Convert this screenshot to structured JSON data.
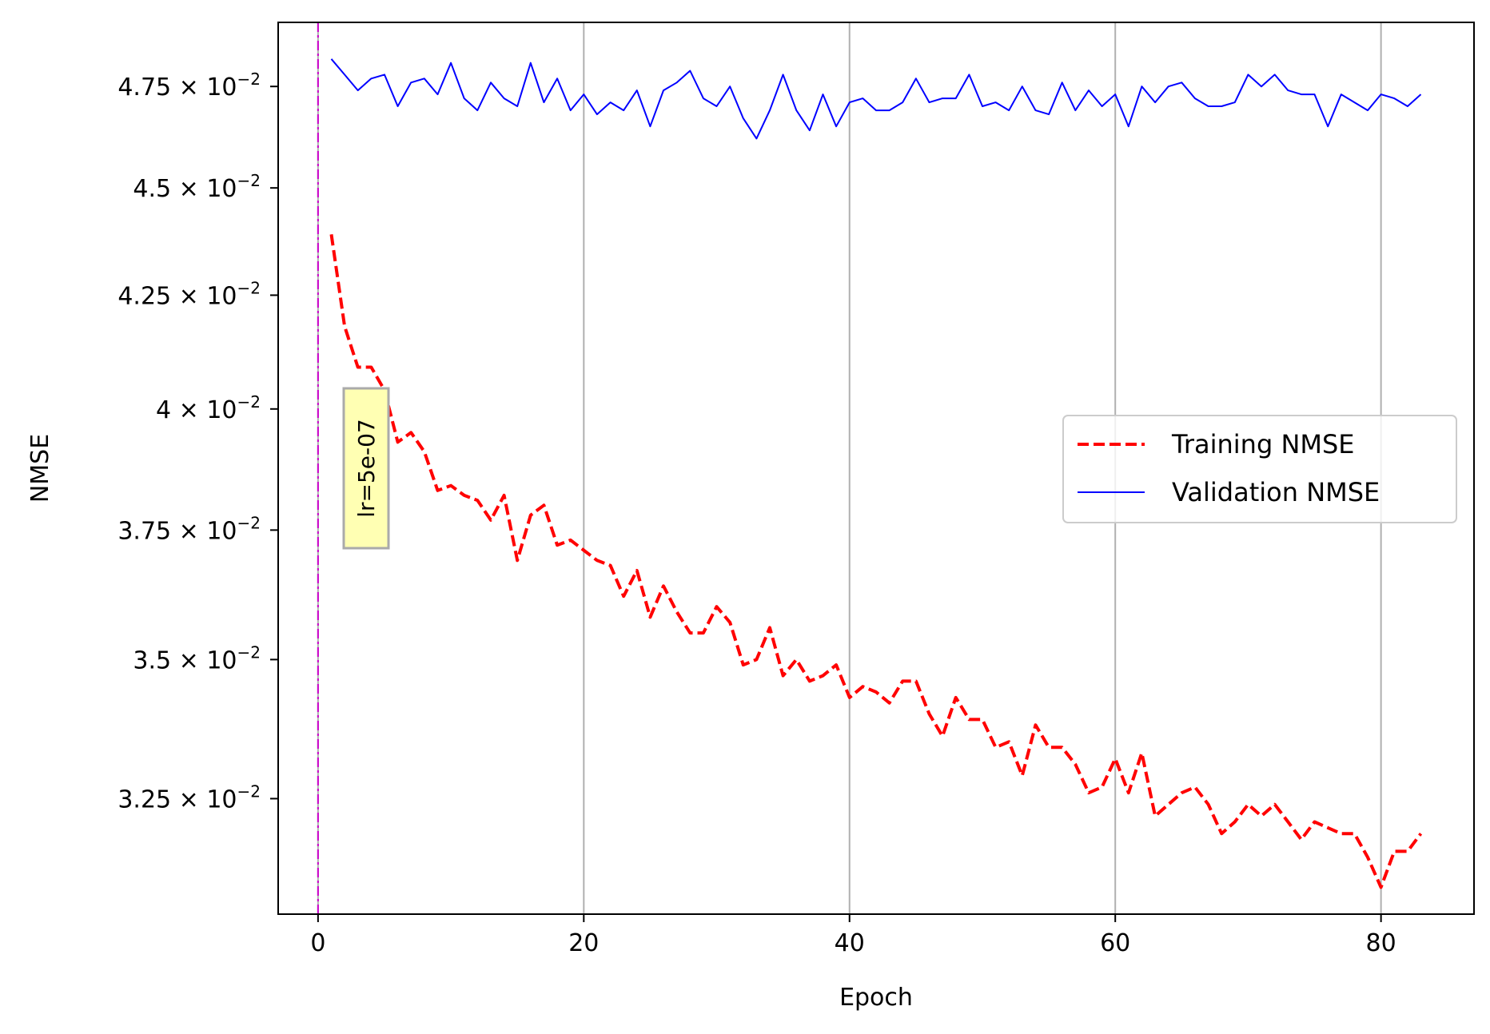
{
  "chart_data": {
    "type": "line",
    "xlabel": "Epoch",
    "ylabel": "NMSE",
    "xlim": [
      -3,
      87
    ],
    "ylim": [
      0.03056,
      0.04915
    ],
    "yscale": "log",
    "grid": "x",
    "x_ticks": [
      {
        "value": 0,
        "label": "0"
      },
      {
        "value": 20,
        "label": "20"
      },
      {
        "value": 40,
        "label": "40"
      },
      {
        "value": 60,
        "label": "60"
      },
      {
        "value": 80,
        "label": "80"
      }
    ],
    "y_ticks": [
      {
        "value": 0.0325,
        "mantissa": "3.25",
        "times": "×",
        "base": "10",
        "exp": "−2"
      },
      {
        "value": 0.035,
        "mantissa": "3.5",
        "times": "×",
        "base": "10",
        "exp": "−2"
      },
      {
        "value": 0.0375,
        "mantissa": "3.75",
        "times": "×",
        "base": "10",
        "exp": "−2"
      },
      {
        "value": 0.04,
        "mantissa": "4",
        "times": "×",
        "base": "10",
        "exp": "−2"
      },
      {
        "value": 0.0425,
        "mantissa": "4.25",
        "times": "×",
        "base": "10",
        "exp": "−2"
      },
      {
        "value": 0.045,
        "mantissa": "4.5",
        "times": "×",
        "base": "10",
        "exp": "−2"
      },
      {
        "value": 0.0475,
        "mantissa": "4.75",
        "times": "×",
        "base": "10",
        "exp": "−2"
      }
    ],
    "legend_position": "center-right",
    "series": [
      {
        "name": "Training NMSE",
        "color": "#ff0000",
        "style": "dashed",
        "x": [
          1,
          2,
          3,
          4,
          5,
          6,
          7,
          8,
          9,
          10,
          11,
          12,
          13,
          14,
          15,
          16,
          17,
          18,
          19,
          20,
          21,
          22,
          23,
          24,
          25,
          26,
          27,
          28,
          29,
          30,
          31,
          32,
          33,
          34,
          35,
          36,
          37,
          38,
          39,
          40,
          41,
          42,
          43,
          44,
          45,
          46,
          47,
          48,
          49,
          50,
          51,
          52,
          53,
          54,
          55,
          56,
          57,
          58,
          59,
          60,
          61,
          62,
          63,
          64,
          65,
          66,
          67,
          68,
          69,
          70,
          71,
          72,
          73,
          74,
          75,
          76,
          77,
          78,
          79,
          80,
          81,
          82,
          83
        ],
        "values": [
          0.0439,
          0.0418,
          0.0409,
          0.0409,
          0.0404,
          0.0393,
          0.0395,
          0.0391,
          0.0383,
          0.0384,
          0.0382,
          0.0381,
          0.0377,
          0.0382,
          0.0369,
          0.0378,
          0.038,
          0.0372,
          0.0373,
          0.0371,
          0.0369,
          0.0368,
          0.0362,
          0.0367,
          0.0358,
          0.0364,
          0.0359,
          0.0355,
          0.0355,
          0.036,
          0.0357,
          0.0349,
          0.035,
          0.0356,
          0.0347,
          0.035,
          0.0346,
          0.0347,
          0.0349,
          0.0343,
          0.0345,
          0.0344,
          0.0342,
          0.0346,
          0.0346,
          0.034,
          0.0336,
          0.0343,
          0.0339,
          0.0339,
          0.0334,
          0.0335,
          0.0329,
          0.0338,
          0.0334,
          0.0334,
          0.0331,
          0.0326,
          0.0327,
          0.0332,
          0.0326,
          0.0333,
          0.0322,
          0.0324,
          0.0326,
          0.0327,
          0.0324,
          0.0319,
          0.0321,
          0.0324,
          0.0322,
          0.0324,
          0.0321,
          0.0318,
          0.0321,
          0.032,
          0.0319,
          0.0319,
          0.0315,
          0.031,
          0.0316,
          0.0316,
          0.0319
        ]
      },
      {
        "name": "Validation NMSE",
        "color": "#0000ff",
        "style": "solid",
        "x": [
          1,
          2,
          3,
          4,
          5,
          6,
          7,
          8,
          9,
          10,
          11,
          12,
          13,
          14,
          15,
          16,
          17,
          18,
          19,
          20,
          21,
          22,
          23,
          24,
          25,
          26,
          27,
          28,
          29,
          30,
          31,
          32,
          33,
          34,
          35,
          36,
          37,
          38,
          39,
          40,
          41,
          42,
          43,
          44,
          45,
          46,
          47,
          48,
          49,
          50,
          51,
          52,
          53,
          54,
          55,
          56,
          57,
          58,
          59,
          60,
          61,
          62,
          63,
          64,
          65,
          66,
          67,
          68,
          69,
          70,
          71,
          72,
          73,
          74,
          75,
          76,
          77,
          78,
          79,
          80,
          81,
          82,
          83
        ],
        "values": [
          0.0482,
          0.0478,
          0.0474,
          0.0477,
          0.0478,
          0.047,
          0.0476,
          0.0477,
          0.0473,
          0.0481,
          0.0472,
          0.0469,
          0.0476,
          0.0472,
          0.047,
          0.0481,
          0.0471,
          0.0477,
          0.0469,
          0.0473,
          0.0468,
          0.0471,
          0.0469,
          0.0474,
          0.0465,
          0.0474,
          0.0476,
          0.0479,
          0.0472,
          0.047,
          0.0475,
          0.0467,
          0.0462,
          0.0469,
          0.0478,
          0.0469,
          0.0464,
          0.0473,
          0.0465,
          0.0471,
          0.0472,
          0.0469,
          0.0469,
          0.0471,
          0.0477,
          0.0471,
          0.0472,
          0.0472,
          0.0478,
          0.047,
          0.0471,
          0.0469,
          0.0475,
          0.0469,
          0.0468,
          0.0476,
          0.0469,
          0.0474,
          0.047,
          0.0473,
          0.0465,
          0.0475,
          0.0471,
          0.0475,
          0.0476,
          0.0472,
          0.047,
          0.047,
          0.0471,
          0.0478,
          0.0475,
          0.0478,
          0.0474,
          0.0473,
          0.0473,
          0.0465,
          0.0473,
          0.0471,
          0.0469,
          0.0473,
          0.0472,
          0.047,
          0.0473
        ]
      }
    ],
    "vertical_line": {
      "x": 0,
      "color": "#cc00cc",
      "style": "dashdot"
    },
    "annotation": {
      "text": "lr=5e-07",
      "x": 2.2,
      "y": 0.0386,
      "rotation": 90,
      "box_color": "#ffffb3"
    }
  }
}
